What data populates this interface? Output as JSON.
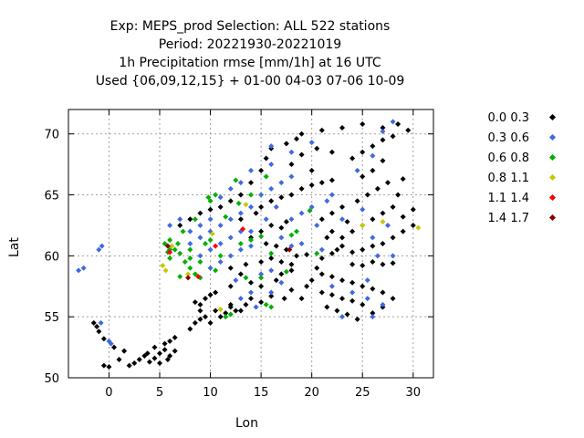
{
  "title": {
    "line1": "Exp: MEPS_prod   Selection: ALL    522 stations",
    "line2": "Period: 20221930-20221019",
    "line3": "1h Precipitation rmse [mm/1h] at  16 UTC",
    "line4": "Used {06,09,12,15} + 01-00 04-03 07-06 10-09"
  },
  "chart_data": {
    "type": "scatter",
    "xlabel": "Lon",
    "ylabel": "Lat",
    "xlim": [
      -4,
      32
    ],
    "ylim": [
      50,
      72
    ],
    "xticks": [
      "0",
      "5",
      "10",
      "15",
      "20",
      "25",
      "30"
    ],
    "yticks": [
      "50",
      "55",
      "60",
      "65",
      "70"
    ],
    "grid": true,
    "legend_position": "right",
    "legend": [
      {
        "label": "0.0 0.3",
        "color": "#000000"
      },
      {
        "label": "0.3 0.6",
        "color": "#4169e1"
      },
      {
        "label": "0.6 0.8",
        "color": "#00b000"
      },
      {
        "label": "0.8 1.1",
        "color": "#c8c800"
      },
      {
        "label": "1.1 1.4",
        "color": "#ff0000"
      },
      {
        "label": "1.4 1.7",
        "color": "#8b0000"
      }
    ],
    "series": [
      {
        "name": "0.0 0.3",
        "points": [
          [
            -1.5,
            54.5
          ],
          [
            -1.2,
            54.2
          ],
          [
            -1,
            53.8
          ],
          [
            -0.5,
            53.2
          ],
          [
            0.5,
            52.5
          ],
          [
            1.5,
            52.2
          ],
          [
            1,
            51.5
          ],
          [
            -0.5,
            51
          ],
          [
            0,
            50.9
          ],
          [
            3,
            51.5
          ],
          [
            3.5,
            51.8
          ],
          [
            4,
            51.3
          ],
          [
            4.5,
            51.6
          ],
          [
            5,
            52
          ],
          [
            5.5,
            52.3
          ],
          [
            5,
            51.2
          ],
          [
            6,
            51.8
          ],
          [
            6.5,
            52.2
          ],
          [
            5.5,
            52.8
          ],
          [
            6,
            53
          ],
          [
            6.5,
            53.3
          ],
          [
            5.8,
            51.5
          ],
          [
            4.5,
            52.5
          ],
          [
            3.8,
            52
          ],
          [
            2,
            51
          ],
          [
            2.5,
            51.2
          ],
          [
            8,
            54
          ],
          [
            8.5,
            54.5
          ],
          [
            9,
            54.8
          ],
          [
            9.5,
            55
          ],
          [
            10,
            54.5
          ],
          [
            10.5,
            55.5
          ],
          [
            11,
            55
          ],
          [
            11.5,
            55.3
          ],
          [
            12,
            55.8
          ],
          [
            9,
            56
          ],
          [
            9.5,
            56.5
          ],
          [
            10,
            56.8
          ],
          [
            10.5,
            57
          ],
          [
            8.5,
            56.2
          ],
          [
            9,
            55.5
          ],
          [
            12.5,
            55.5
          ],
          [
            12,
            56
          ],
          [
            13,
            55.5
          ],
          [
            13.5,
            56
          ],
          [
            14,
            56.5
          ],
          [
            15,
            56.2
          ],
          [
            16,
            56.7
          ],
          [
            15,
            57.5
          ],
          [
            14,
            57.8
          ],
          [
            16.5,
            58
          ],
          [
            13,
            58.5
          ],
          [
            12,
            57.5
          ],
          [
            12,
            59
          ],
          [
            13.5,
            59.3
          ],
          [
            15,
            59.5
          ],
          [
            16,
            59.8
          ],
          [
            17,
            59.5
          ],
          [
            18,
            59.3
          ],
          [
            18.5,
            60
          ],
          [
            17.5,
            60.5
          ],
          [
            16.5,
            60.8
          ],
          [
            15.5,
            61
          ],
          [
            14,
            61.5
          ],
          [
            15,
            62
          ],
          [
            16,
            62.5
          ],
          [
            17,
            62.3
          ],
          [
            17.5,
            62.8
          ],
          [
            13,
            63
          ],
          [
            14.5,
            63.5
          ],
          [
            15,
            64
          ],
          [
            16,
            64.5
          ],
          [
            17,
            64.8
          ],
          [
            18,
            65
          ],
          [
            19,
            65.5
          ],
          [
            20,
            65.8
          ],
          [
            21,
            66
          ],
          [
            22,
            66.2
          ],
          [
            20,
            67
          ],
          [
            18,
            67.5
          ],
          [
            19,
            68.3
          ],
          [
            20.5,
            68.8
          ],
          [
            22,
            68.5
          ],
          [
            7,
            62.5
          ],
          [
            8,
            63
          ],
          [
            9,
            63.5
          ],
          [
            10,
            63.8
          ],
          [
            11,
            64
          ],
          [
            12,
            64.5
          ],
          [
            13,
            65
          ],
          [
            14,
            66
          ],
          [
            15,
            67
          ],
          [
            15.5,
            68
          ],
          [
            16,
            68.8
          ],
          [
            17.5,
            69.2
          ],
          [
            18.5,
            69.6
          ],
          [
            19,
            70
          ],
          [
            21,
            70.3
          ],
          [
            23,
            70.5
          ],
          [
            25,
            70.8
          ],
          [
            27,
            70.5
          ],
          [
            28.5,
            70.8
          ],
          [
            29.5,
            70.3
          ],
          [
            22,
            60.2
          ],
          [
            22.5,
            60.5
          ],
          [
            23,
            60.8
          ],
          [
            24,
            60.3
          ],
          [
            25,
            60.5
          ],
          [
            26,
            60.8
          ],
          [
            27,
            61
          ],
          [
            28,
            61.5
          ],
          [
            29,
            62
          ],
          [
            30,
            62.5
          ],
          [
            23,
            61.5
          ],
          [
            24,
            62
          ],
          [
            25,
            62.5
          ],
          [
            26,
            63
          ],
          [
            27,
            63.5
          ],
          [
            28,
            64
          ],
          [
            24.5,
            64.5
          ],
          [
            25.5,
            65
          ],
          [
            26.5,
            65.5
          ],
          [
            27.5,
            66
          ],
          [
            25,
            66.5
          ],
          [
            26,
            67
          ],
          [
            27,
            67.8
          ],
          [
            24,
            68
          ],
          [
            25,
            68.5
          ],
          [
            26,
            69
          ],
          [
            27,
            69.5
          ],
          [
            28,
            69.8
          ],
          [
            21,
            63
          ],
          [
            22,
            63.5
          ],
          [
            23,
            64
          ],
          [
            21.5,
            61.5
          ],
          [
            22,
            62
          ],
          [
            23.5,
            62.8
          ],
          [
            29,
            63.2
          ],
          [
            30,
            63.8
          ],
          [
            28.5,
            65
          ],
          [
            29,
            66.3
          ],
          [
            24,
            59.3
          ],
          [
            25,
            59.2
          ],
          [
            26,
            59.5
          ],
          [
            27,
            59.3
          ],
          [
            28,
            59.4
          ],
          [
            21,
            58.5
          ],
          [
            22,
            58.3
          ],
          [
            23,
            58
          ],
          [
            24,
            57.8
          ],
          [
            25,
            57.5
          ],
          [
            26,
            57.3
          ],
          [
            27,
            57
          ],
          [
            21,
            57
          ],
          [
            22,
            56.8
          ],
          [
            23,
            56.5
          ],
          [
            24,
            56.3
          ],
          [
            25,
            56
          ],
          [
            21.5,
            55.8
          ],
          [
            22.5,
            55.5
          ],
          [
            23.5,
            55.2
          ],
          [
            24.5,
            54.8
          ],
          [
            26,
            55.3
          ],
          [
            27,
            55.8
          ],
          [
            28,
            56.5
          ],
          [
            19,
            56.5
          ],
          [
            19.5,
            57.5
          ],
          [
            20,
            58
          ],
          [
            20.5,
            59
          ],
          [
            21,
            59.8
          ],
          [
            19.5,
            60.1
          ],
          [
            17,
            58.5
          ],
          [
            18,
            58.8
          ],
          [
            18,
            57.2
          ],
          [
            17.3,
            56.5
          ]
        ]
      },
      {
        "name": "0.3 0.6",
        "points": [
          [
            -3,
            58.8
          ],
          [
            -2.5,
            59
          ],
          [
            -1,
            60.5
          ],
          [
            -0.7,
            60.8
          ],
          [
            -0.8,
            54.5
          ],
          [
            0,
            53
          ],
          [
            0.2,
            52.8
          ],
          [
            6,
            62.5
          ],
          [
            7,
            63
          ],
          [
            8,
            62
          ],
          [
            9,
            61.5
          ],
          [
            10,
            62
          ],
          [
            11,
            62.5
          ],
          [
            12,
            63
          ],
          [
            13,
            63.5
          ],
          [
            14,
            64
          ],
          [
            15,
            65
          ],
          [
            16,
            65.5
          ],
          [
            14,
            62
          ],
          [
            15.5,
            63
          ],
          [
            16.5,
            64
          ],
          [
            17,
            66
          ],
          [
            18,
            66.5
          ],
          [
            9,
            60
          ],
          [
            10,
            60.5
          ],
          [
            11,
            61
          ],
          [
            12,
            61.5
          ],
          [
            13,
            62
          ],
          [
            10,
            59
          ],
          [
            11,
            59.5
          ],
          [
            12,
            60
          ],
          [
            13,
            60.5
          ],
          [
            14,
            60.8
          ],
          [
            15,
            58.5
          ],
          [
            16,
            58.8
          ],
          [
            17,
            57.8
          ],
          [
            16,
            57
          ],
          [
            14,
            57
          ],
          [
            14.5,
            55.8
          ],
          [
            12.5,
            58
          ],
          [
            13,
            56.5
          ],
          [
            27,
            70.2
          ],
          [
            28,
            71
          ],
          [
            26,
            68.2
          ],
          [
            24.5,
            67
          ],
          [
            22,
            65
          ],
          [
            21.5,
            64.5
          ],
          [
            23,
            63
          ],
          [
            25,
            63.8
          ],
          [
            26,
            61.5
          ],
          [
            27.5,
            62.5
          ],
          [
            28,
            60
          ],
          [
            26.5,
            60
          ],
          [
            25.5,
            58
          ],
          [
            24,
            57
          ],
          [
            25.5,
            56.5
          ],
          [
            23,
            55
          ],
          [
            26,
            55
          ],
          [
            27,
            56
          ],
          [
            22,
            57.5
          ],
          [
            19,
            63.5
          ],
          [
            20,
            64
          ],
          [
            20.5,
            62.5
          ],
          [
            21,
            60.5
          ],
          [
            19,
            61
          ],
          [
            18,
            60.8
          ],
          [
            17,
            61.5
          ],
          [
            18,
            63
          ],
          [
            13,
            66
          ],
          [
            14,
            67
          ],
          [
            16,
            67.5
          ],
          [
            16,
            69
          ],
          [
            18,
            68.5
          ],
          [
            20,
            69.3
          ],
          [
            11,
            64.8
          ],
          [
            12,
            65.5
          ],
          [
            10,
            63
          ],
          [
            9,
            62.5
          ],
          [
            8,
            61
          ]
        ]
      },
      {
        "name": "0.6 0.8",
        "points": [
          [
            5.5,
            61
          ],
          [
            6,
            61.3
          ],
          [
            6.5,
            60.5
          ],
          [
            7,
            60.2
          ],
          [
            7.5,
            59.5
          ],
          [
            8,
            59
          ],
          [
            8.5,
            58.5
          ],
          [
            9,
            58.2
          ],
          [
            7,
            58.3
          ],
          [
            6,
            59.8
          ],
          [
            5.8,
            60.3
          ],
          [
            6.8,
            61
          ],
          [
            8,
            60.5
          ],
          [
            9.5,
            61
          ],
          [
            10,
            61.3
          ],
          [
            11,
            60
          ],
          [
            10.5,
            58.8
          ],
          [
            8,
            59.8
          ],
          [
            9,
            59.5
          ],
          [
            11.5,
            55
          ],
          [
            12,
            55.2
          ],
          [
            15.5,
            56
          ],
          [
            16,
            55.8
          ],
          [
            13.5,
            58.2
          ],
          [
            15,
            58.2
          ],
          [
            17.5,
            58.7
          ],
          [
            14,
            61.3
          ],
          [
            15,
            61.6
          ],
          [
            16,
            60.2
          ],
          [
            18.5,
            62
          ],
          [
            19.8,
            63.7
          ],
          [
            14,
            65
          ],
          [
            12.8,
            64.3
          ],
          [
            10.5,
            65
          ],
          [
            9.8,
            64.8
          ],
          [
            11.5,
            63.2
          ],
          [
            12.5,
            66.2
          ],
          [
            15.5,
            66.5
          ],
          [
            18,
            61.7
          ],
          [
            20.5,
            60.2
          ],
          [
            6,
            60.5
          ],
          [
            7.3,
            62
          ],
          [
            8.5,
            63
          ],
          [
            10,
            64.5
          ],
          [
            13,
            61
          ]
        ]
      },
      {
        "name": "0.8 1.1",
        "points": [
          [
            5.3,
            59.2
          ],
          [
            5.6,
            58.8
          ],
          [
            7.8,
            58.5
          ],
          [
            13.5,
            64.2
          ],
          [
            25,
            62.5
          ],
          [
            27,
            62.8
          ],
          [
            30.5,
            62.3
          ],
          [
            11,
            55.6
          ],
          [
            10.2,
            61.8
          ],
          [
            6.2,
            60.8
          ]
        ]
      },
      {
        "name": "1.1 1.4",
        "points": [
          [
            6,
            60.3
          ],
          [
            10.5,
            60.8
          ],
          [
            8.8,
            58.3
          ],
          [
            13.2,
            62.2
          ]
        ]
      },
      {
        "name": "1.4 1.7",
        "points": [
          [
            5.8,
            60.8
          ],
          [
            7.8,
            58.2
          ],
          [
            17.8,
            60.5
          ]
        ]
      }
    ]
  }
}
